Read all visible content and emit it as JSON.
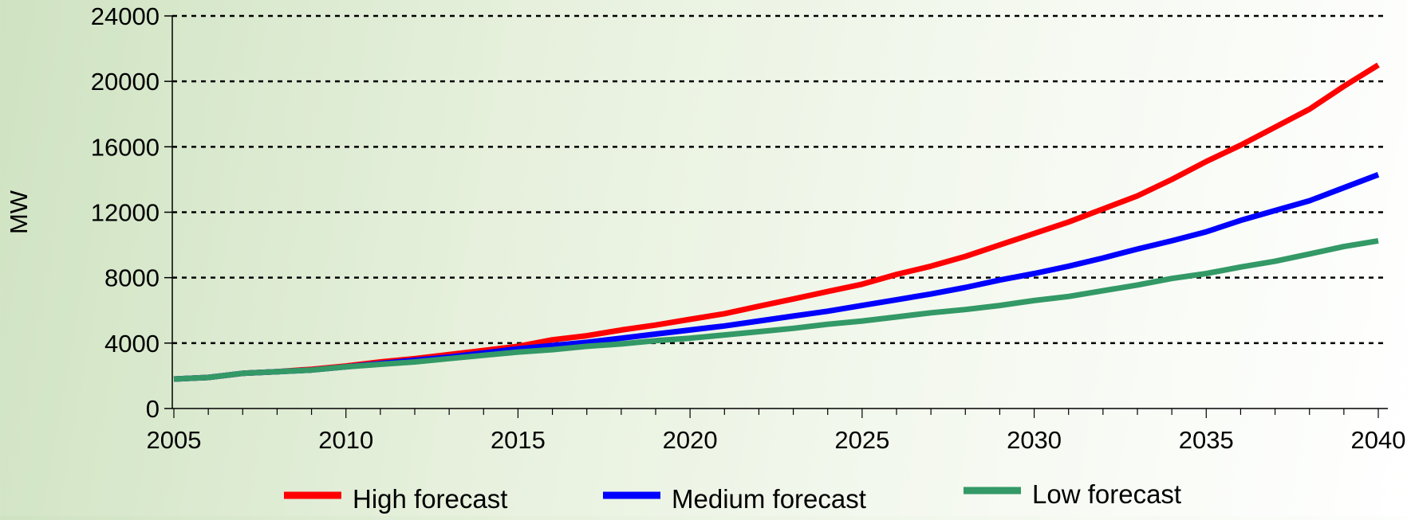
{
  "chart_data": {
    "type": "line",
    "title": "",
    "xlabel": "",
    "ylabel": "MW",
    "xlim": [
      2005,
      2040
    ],
    "ylim": [
      0,
      24000
    ],
    "x_ticks": [
      2005,
      2010,
      2015,
      2020,
      2025,
      2030,
      2035,
      2040
    ],
    "y_ticks": [
      0,
      4000,
      8000,
      12000,
      16000,
      20000,
      24000
    ],
    "grid": "horizontal-dashed",
    "legend_position": "bottom",
    "x": [
      2005,
      2006,
      2007,
      2008,
      2009,
      2010,
      2011,
      2012,
      2013,
      2014,
      2015,
      2016,
      2017,
      2018,
      2019,
      2020,
      2021,
      2022,
      2023,
      2024,
      2025,
      2026,
      2027,
      2028,
      2029,
      2030,
      2031,
      2032,
      2033,
      2034,
      2035,
      2036,
      2037,
      2038,
      2039,
      2040
    ],
    "series": [
      {
        "name": "High forecast",
        "color": "#ff0000",
        "values": [
          1800,
          1900,
          2150,
          2250,
          2400,
          2600,
          2850,
          3050,
          3300,
          3550,
          3800,
          4200,
          4450,
          4800,
          5100,
          5450,
          5800,
          6250,
          6700,
          7150,
          7600,
          8200,
          8700,
          9300,
          10000,
          10700,
          11400,
          12200,
          13000,
          14000,
          15100,
          16100,
          17200,
          18300,
          19700,
          21000
        ]
      },
      {
        "name": "Medium forecast",
        "color": "#0000ff",
        "values": [
          1800,
          1900,
          2150,
          2250,
          2350,
          2550,
          2750,
          2950,
          3150,
          3400,
          3650,
          3850,
          4050,
          4300,
          4550,
          4800,
          5050,
          5350,
          5650,
          5950,
          6300,
          6650,
          7000,
          7400,
          7850,
          8250,
          8700,
          9200,
          9750,
          10250,
          10800,
          11500,
          12100,
          12700,
          13500,
          14300
        ]
      },
      {
        "name": "Low forecast",
        "color": "#339966",
        "values": [
          1800,
          1900,
          2150,
          2250,
          2350,
          2550,
          2700,
          2850,
          3050,
          3250,
          3450,
          3600,
          3800,
          3950,
          4150,
          4300,
          4500,
          4700,
          4900,
          5150,
          5350,
          5600,
          5850,
          6050,
          6300,
          6600,
          6850,
          7200,
          7550,
          7950,
          8250,
          8650,
          9000,
          9450,
          9900,
          10250
        ]
      }
    ]
  }
}
